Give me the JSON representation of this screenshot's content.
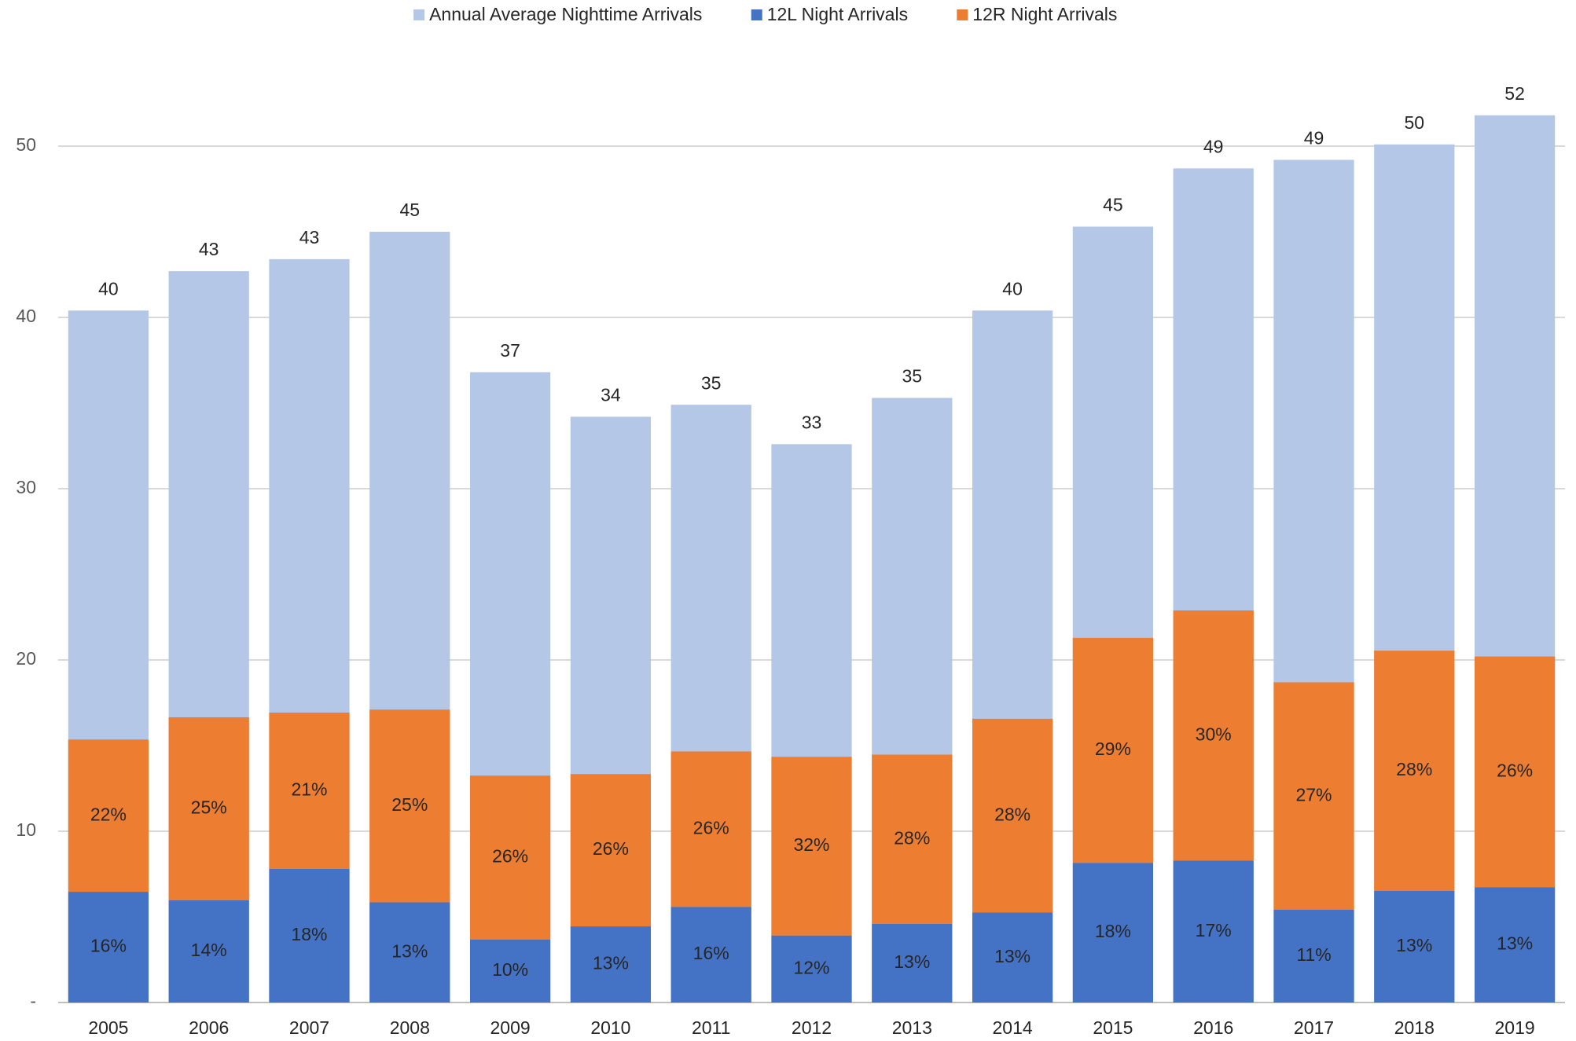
{
  "chart_data": {
    "type": "bar",
    "categories": [
      "2005",
      "2006",
      "2007",
      "2008",
      "2009",
      "2010",
      "2011",
      "2012",
      "2013",
      "2014",
      "2015",
      "2016",
      "2017",
      "2018",
      "2019"
    ],
    "series": [
      {
        "name": "Annual Average Nighttime Arrivals",
        "color": "#b4c7e7",
        "values": [
          40.4,
          42.7,
          43.4,
          45.0,
          36.8,
          34.2,
          34.9,
          32.6,
          35.3,
          40.4,
          45.3,
          48.7,
          49.2,
          50.1,
          51.8
        ],
        "value_labels": [
          "40",
          "43",
          "43",
          "45",
          "37",
          "34",
          "35",
          "33",
          "35",
          "40",
          "45",
          "49",
          "49",
          "50",
          "52"
        ]
      },
      {
        "name": "12L Night Arrivals",
        "color": "#4472c4",
        "values": [
          16,
          14,
          18,
          13,
          10,
          13,
          16,
          12,
          13,
          13,
          18,
          17,
          11,
          13,
          13
        ],
        "value_labels": [
          "16%",
          "14%",
          "18%",
          "13%",
          "10%",
          "13%",
          "16%",
          "12%",
          "13%",
          "13%",
          "18%",
          "17%",
          "11%",
          "13%",
          "13%"
        ]
      },
      {
        "name": "12R Night Arrivals",
        "color": "#ed7d31",
        "values": [
          22,
          25,
          21,
          25,
          26,
          26,
          26,
          32,
          28,
          28,
          29,
          30,
          27,
          28,
          26
        ],
        "value_labels": [
          "22%",
          "25%",
          "21%",
          "25%",
          "26%",
          "26%",
          "26%",
          "32%",
          "28%",
          "28%",
          "29%",
          "30%",
          "27%",
          "28%",
          "26%"
        ]
      }
    ],
    "ylim": [
      0,
      55
    ],
    "yticks": [
      {
        "value": 0,
        "label": "-"
      },
      10,
      20,
      30,
      40,
      50
    ],
    "grid": true,
    "legend": "top"
  }
}
